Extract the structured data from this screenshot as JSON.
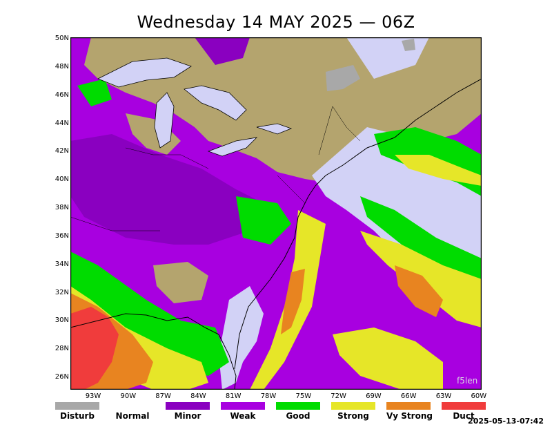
{
  "title": "Wednesday 14 MAY 2025 — 06Z",
  "latitudes": [
    "50N",
    "48N",
    "46N",
    "44N",
    "42N",
    "40N",
    "38N",
    "36N",
    "34N",
    "32N",
    "30N",
    "28N",
    "26N"
  ],
  "longitudes": [
    "93W",
    "90W",
    "87W",
    "84W",
    "81W",
    "78W",
    "75W",
    "72W",
    "69W",
    "66W",
    "63W",
    "60W"
  ],
  "legend": [
    {
      "label": "Disturb",
      "color": "#a8a8a8"
    },
    {
      "label": "Normal",
      "color": "#ffffff"
    },
    {
      "label": "Minor",
      "color": "#8a00c0"
    },
    {
      "label": "Weak",
      "color": "#a800e0"
    },
    {
      "label": "Good",
      "color": "#00dc00"
    },
    {
      "label": "Strong",
      "color": "#e6e628"
    },
    {
      "label": "Vy Strong",
      "color": "#e88420"
    },
    {
      "label": "Duct",
      "color": "#f03c3c"
    }
  ],
  "watermark": "f5len",
  "timestamp": "2025-05-13-07:42",
  "colors": {
    "land": "#b4a46e",
    "ocean_normal": "#d2d2f6",
    "minor": "#8a00c0",
    "weak": "#a800e0",
    "good": "#00dc00",
    "strong": "#e6e628",
    "vystrong": "#e88420",
    "duct": "#f03c3c",
    "disturb": "#a8a8a8"
  }
}
